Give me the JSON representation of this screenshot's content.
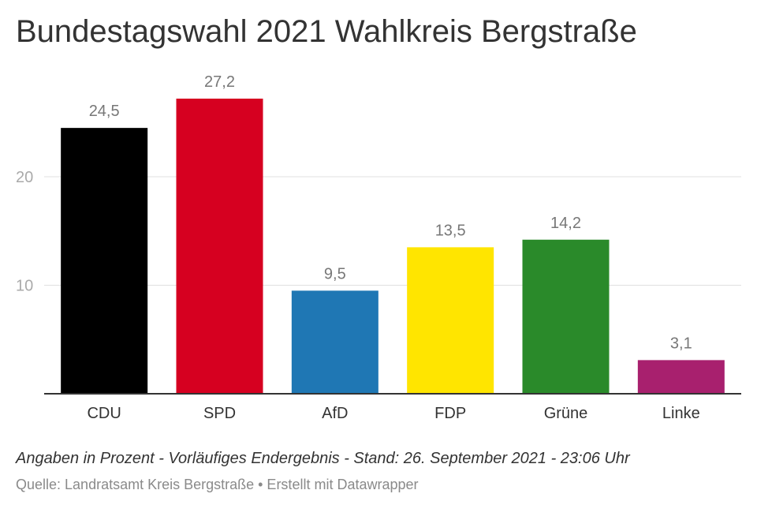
{
  "title": "Bundestagswahl 2021 Wahlkreis Bergstraße",
  "notes": "Angaben in Prozent - Vorläufiges Endergebnis - Stand: 26. September 2021 - 23:06 Uhr",
  "source": "Quelle: Landratsamt Kreis Bergstraße • Erstellt mit Datawrapper",
  "chart_data": {
    "type": "bar",
    "categories": [
      "CDU",
      "SPD",
      "AfD",
      "FDP",
      "Grüne",
      "Linke"
    ],
    "values": [
      24.5,
      27.2,
      9.5,
      13.5,
      14.2,
      3.1
    ],
    "value_labels": [
      "24,5",
      "27,2",
      "9,5",
      "13,5",
      "14,2",
      "3,1"
    ],
    "colors": [
      "#000000",
      "#d60020",
      "#1f77b4",
      "#ffe500",
      "#2a8a2a",
      "#a8206e"
    ],
    "yticks": [
      10,
      20
    ],
    "ytick_labels": [
      "10",
      "20"
    ],
    "ylim": [
      0,
      27.2
    ],
    "grid": true
  }
}
